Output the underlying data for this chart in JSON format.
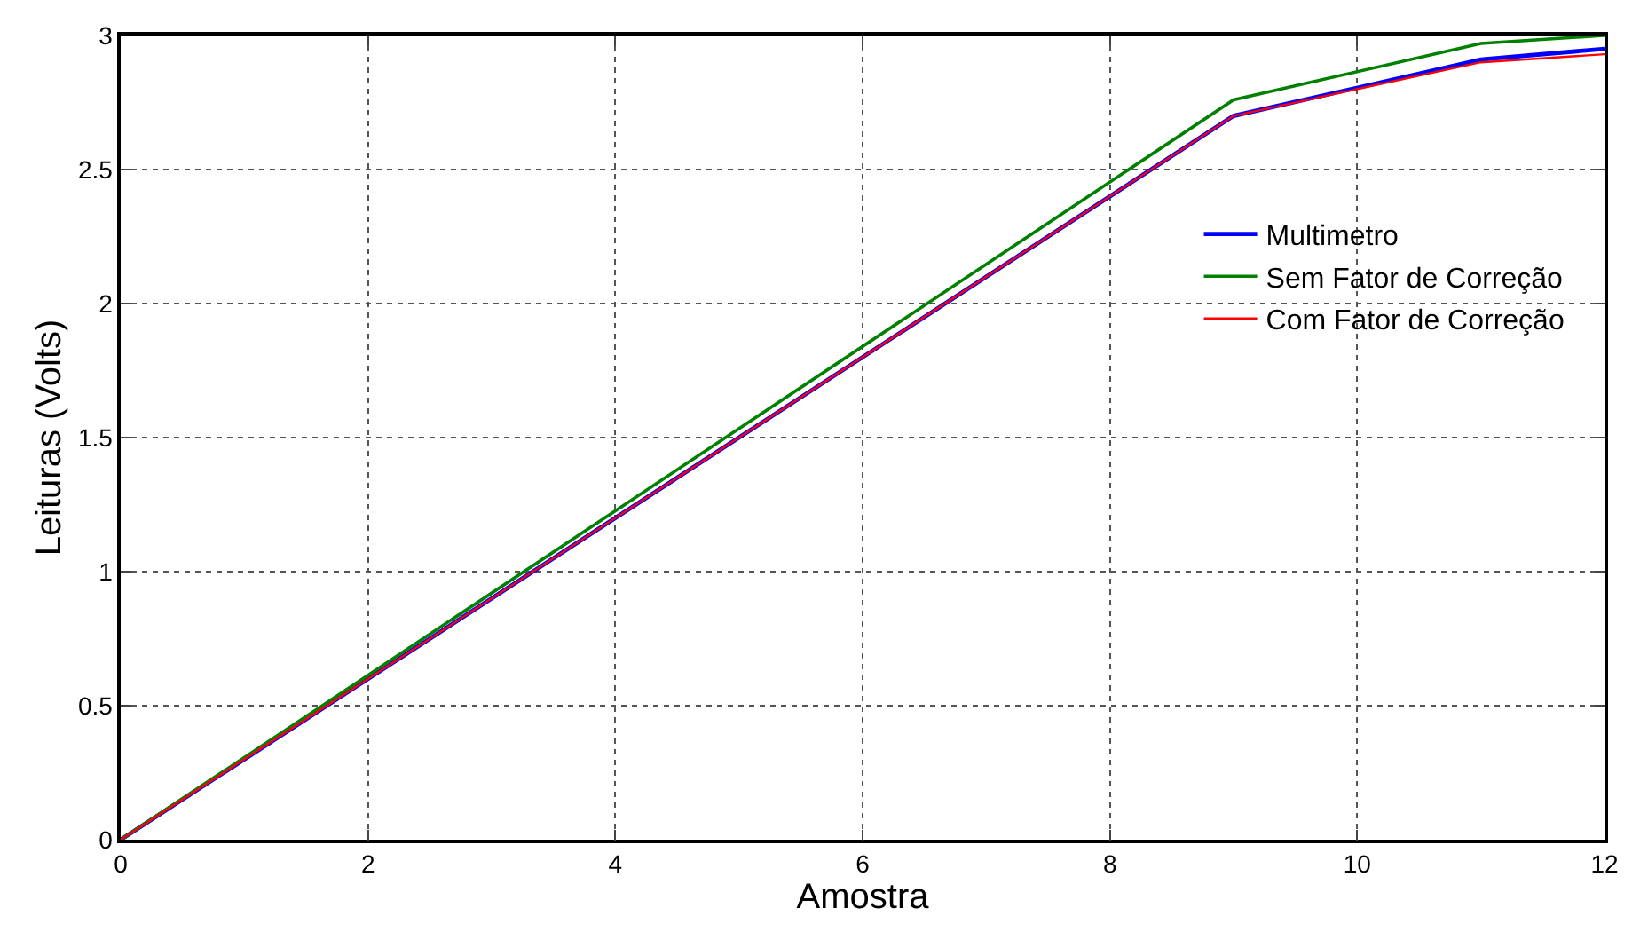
{
  "chart_data": {
    "type": "line",
    "xlabel": "Amostra",
    "ylabel": "Leituras (Volts)",
    "x": [
      0,
      9,
      11,
      12
    ],
    "series": [
      {
        "name": "Multimetro",
        "color": "#0000ff",
        "values": [
          0,
          2.7,
          2.91,
          2.95
        ]
      },
      {
        "name": "Sem Fator de Correção",
        "color": "#008000",
        "values": [
          0,
          2.76,
          2.97,
          3.0
        ]
      },
      {
        "name": "Com Fator de Correção",
        "color": "#ff0000",
        "values": [
          0,
          2.7,
          2.9,
          2.93
        ]
      }
    ],
    "xlim": [
      0,
      12
    ],
    "xticks": [
      0,
      2,
      4,
      6,
      8,
      10,
      12
    ],
    "ylim": [
      0,
      3
    ],
    "yticks": [
      0,
      0.5,
      1,
      1.5,
      2,
      2.5,
      3
    ],
    "grid": true,
    "legend": "right",
    "line_style": "solid",
    "marker": "none"
  }
}
